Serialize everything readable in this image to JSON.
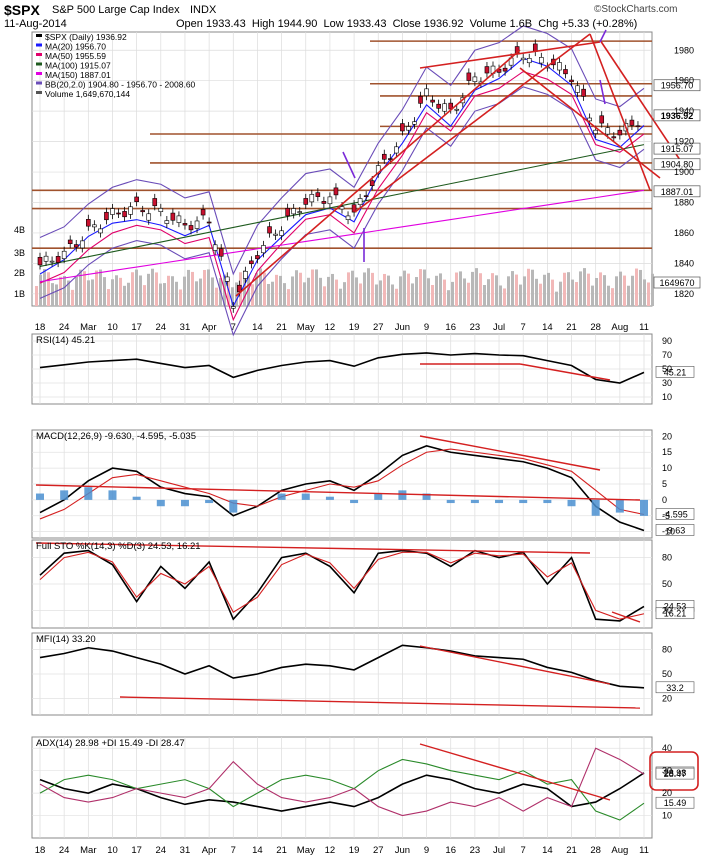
{
  "header": {
    "symbol": "$SPX",
    "name": "S&P 500 Large Cap Index",
    "exchange": "INDX",
    "date": "11-Aug-2014",
    "open_label": "Open",
    "open": "1933.43",
    "high_label": "High",
    "high": "1944.90",
    "low_label": "Low",
    "low": "1933.43",
    "close_label": "Close",
    "close": "1936.92",
    "volume_label": "Volume",
    "volume": "1.6B",
    "chg_label": "Chg",
    "chg": "+5.33 (+0.28%)",
    "brand": "©StockCharts.com"
  },
  "colors": {
    "ma20": "#1a1aff",
    "ma50": "#e0006a",
    "ma100": "#1e5a1e",
    "ma150": "#e000e0",
    "bb": "#6a4cb8",
    "trend": "#d42020",
    "hline": "#a0522d",
    "arrow": "#7a2ad8",
    "up": "#ffffff",
    "down": "#c8102e",
    "macd_hist": "#4a8fd0",
    "adx_box": "#d42020"
  },
  "chart_data": [
    {
      "type": "candlestick",
      "panel": "price",
      "legend": [
        {
          "label": "$SPX (Daily) 1936.92",
          "color": "#000000"
        },
        {
          "label": "MA(20) 1956.70",
          "color": "#1a1aff"
        },
        {
          "label": "MA(50) 1955.59",
          "color": "#e0006a"
        },
        {
          "label": "MA(100) 1915.07",
          "color": "#1e5a1e"
        },
        {
          "label": "MA(150) 1887.01",
          "color": "#e000e0"
        },
        {
          "label": "BB(20,2.0) 1904.80 - 1956.70 - 2008.60",
          "color": "#6a4cb8"
        },
        {
          "label": "Volume 1,649,670,144",
          "color": "#555555"
        }
      ],
      "ylim": [
        1812,
        1992
      ],
      "y_ticks": [
        1820,
        1840,
        1860,
        1880,
        1900,
        1920,
        1940,
        1960,
        1980
      ],
      "x_ticks": [
        "18",
        "24",
        "Mar",
        "10",
        "17",
        "24",
        "31",
        "Apr",
        "7",
        "14",
        "21",
        "May",
        "12",
        "19",
        "27",
        "Jun",
        "9",
        "16",
        "23",
        "Jul",
        "7",
        "14",
        "21",
        "28",
        "Aug",
        "11"
      ],
      "volume_ticks": [
        "4B",
        "3B",
        "2B",
        "1B"
      ],
      "value_labels": [
        "1956.70",
        "1936.92",
        "1915.07",
        "1904.80",
        "1887.01",
        "1649670"
      ],
      "weekly_close": [
        1839,
        1846,
        1861,
        1872,
        1877,
        1874,
        1865,
        1869,
        1815,
        1847,
        1865,
        1881,
        1884,
        1872,
        1901,
        1923,
        1951,
        1939,
        1962,
        1967,
        1978,
        1973,
        1963,
        1930,
        1925,
        1937
      ],
      "horizontal_levels": [
        1986,
        1958,
        1950,
        1930,
        1925,
        1906,
        1888,
        1876,
        1850
      ],
      "last_close": 1936.92
    },
    {
      "type": "line",
      "panel": "RSI",
      "legend": "RSI(14) 45.21",
      "ylim": [
        0,
        100
      ],
      "y_ticks": [
        10,
        30,
        50,
        70,
        90
      ],
      "values": [
        52,
        56,
        60,
        62,
        64,
        58,
        52,
        55,
        38,
        48,
        55,
        60,
        62,
        54,
        66,
        71,
        73,
        70,
        72,
        70,
        69,
        62,
        55,
        35,
        30,
        45.21
      ]
    },
    {
      "type": "line",
      "panel": "MACD",
      "legend": "MACD(12,26,9) -9.630, -4.595, -5.035",
      "ylim": [
        -12,
        22
      ],
      "y_ticks": [
        -10,
        -5,
        0,
        5,
        10,
        15,
        20
      ],
      "series": [
        {
          "name": "MACD",
          "values": [
            -4,
            0,
            6,
            10,
            9,
            4,
            2,
            1,
            -5,
            -2,
            3,
            5,
            6,
            3,
            8,
            14,
            17,
            15,
            14,
            13,
            12,
            10,
            7,
            -2,
            -7,
            -9.63
          ]
        },
        {
          "name": "Signal",
          "values": [
            -6,
            -3,
            2,
            7,
            8,
            6,
            4,
            2,
            -1,
            -2,
            1,
            3,
            5,
            4,
            6,
            11,
            15,
            16,
            15,
            14,
            13,
            11,
            9,
            3,
            -3,
            -4.595
          ]
        },
        {
          "name": "Histogram",
          "values": [
            2,
            3,
            4,
            3,
            1,
            -2,
            -2,
            -1,
            -4,
            0,
            2,
            2,
            1,
            -1,
            2,
            3,
            2,
            -1,
            -1,
            -1,
            -1,
            -1,
            -2,
            -5,
            -4,
            -5.035
          ]
        }
      ]
    },
    {
      "type": "line",
      "panel": "STO",
      "legend": "Full STO %K(14,3) %D(3) 24.53, 16.21",
      "ylim": [
        0,
        100
      ],
      "y_ticks": [
        20,
        50,
        80
      ],
      "series": [
        {
          "name": "%K",
          "values": [
            60,
            85,
            88,
            72,
            30,
            70,
            45,
            75,
            10,
            40,
            80,
            85,
            70,
            40,
            85,
            88,
            85,
            70,
            88,
            80,
            86,
            50,
            80,
            10,
            8,
            24.53
          ]
        },
        {
          "name": "%D",
          "values": [
            55,
            80,
            86,
            75,
            35,
            62,
            50,
            70,
            18,
            35,
            72,
            84,
            74,
            45,
            78,
            86,
            86,
            74,
            85,
            82,
            84,
            58,
            74,
            20,
            10,
            16.21
          ]
        }
      ]
    },
    {
      "type": "line",
      "panel": "MFI",
      "legend": "MFI(14) 33.20",
      "ylim": [
        0,
        100
      ],
      "y_ticks": [
        20,
        50,
        80
      ],
      "values": [
        70,
        75,
        82,
        78,
        70,
        62,
        50,
        60,
        45,
        50,
        58,
        62,
        60,
        55,
        70,
        85,
        82,
        78,
        72,
        70,
        68,
        58,
        52,
        42,
        35,
        33.2
      ]
    },
    {
      "type": "line",
      "panel": "ADX",
      "legend": "ADX(14) 28.98 +DI 15.49 -DI 28.47",
      "ylim": [
        0,
        45
      ],
      "y_ticks": [
        10,
        20,
        30,
        40
      ],
      "series": [
        {
          "name": "ADX",
          "values": [
            26,
            22,
            20,
            24,
            22,
            18,
            15,
            17,
            16,
            14,
            12,
            14,
            16,
            14,
            18,
            24,
            28,
            26,
            22,
            20,
            24,
            22,
            14,
            16,
            22,
            28.98
          ]
        },
        {
          "name": "+DI",
          "values": [
            20,
            26,
            28,
            26,
            22,
            24,
            26,
            22,
            14,
            20,
            26,
            28,
            26,
            22,
            30,
            35,
            33,
            30,
            28,
            26,
            30,
            24,
            26,
            12,
            8,
            15.49
          ]
        },
        {
          "name": "-DI",
          "values": [
            24,
            18,
            16,
            18,
            22,
            20,
            18,
            22,
            34,
            24,
            18,
            16,
            18,
            22,
            14,
            10,
            12,
            16,
            14,
            18,
            12,
            18,
            14,
            40,
            35,
            28.47
          ]
        }
      ]
    }
  ]
}
